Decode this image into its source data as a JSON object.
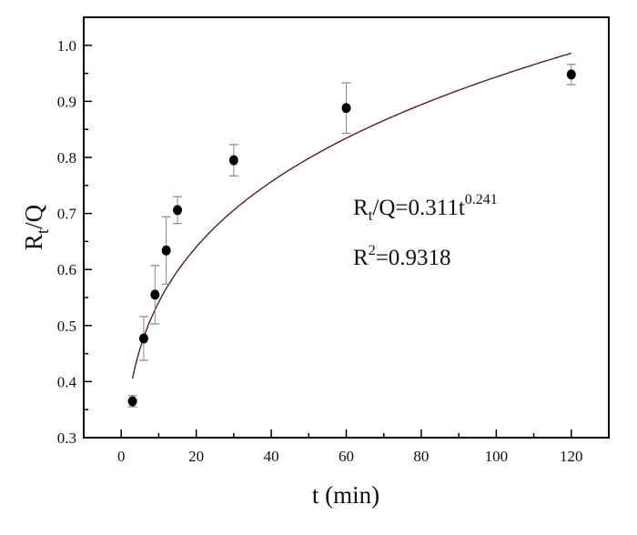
{
  "chart_data": {
    "type": "scatter",
    "xlabel": "t (min)",
    "ylabel_main": "R",
    "ylabel_sub": "t",
    "ylabel_rest": "/Q",
    "xlim": [
      -10,
      130
    ],
    "ylim": [
      0.3,
      1.05
    ],
    "xticks": [
      0,
      20,
      40,
      60,
      80,
      100,
      120
    ],
    "xtick_labels": [
      "0",
      "20",
      "40",
      "60",
      "80",
      "100",
      "120"
    ],
    "yticks": [
      0.3,
      0.4,
      0.5,
      0.6,
      0.7,
      0.8,
      0.9,
      1.0
    ],
    "ytick_labels": [
      "0.3",
      "0.4",
      "0.5",
      "0.6",
      "0.7",
      "0.8",
      "0.9",
      "1.0"
    ],
    "grid": false,
    "points": {
      "x": [
        3,
        6,
        9,
        12,
        15,
        30,
        60,
        120
      ],
      "y": [
        0.365,
        0.477,
        0.555,
        0.634,
        0.706,
        0.795,
        0.888,
        0.948
      ],
      "yerr": [
        0.01,
        0.039,
        0.052,
        0.06,
        0.024,
        0.028,
        0.045,
        0.018
      ]
    },
    "fit": {
      "a": 0.311,
      "b": 0.241,
      "x_range": [
        3,
        120
      ],
      "color": "#5a1e1e"
    },
    "annotations": {
      "equation_lhs": "R",
      "equation_sub": "t",
      "equation_mid": "/Q=0.311t",
      "equation_exp": "0.241",
      "r2_base": "R",
      "r2_exp": "2",
      "r2_value": "=0.9318"
    },
    "colors": {
      "points": "#000000",
      "errorbars": "#888888",
      "axes": "#000000"
    }
  }
}
